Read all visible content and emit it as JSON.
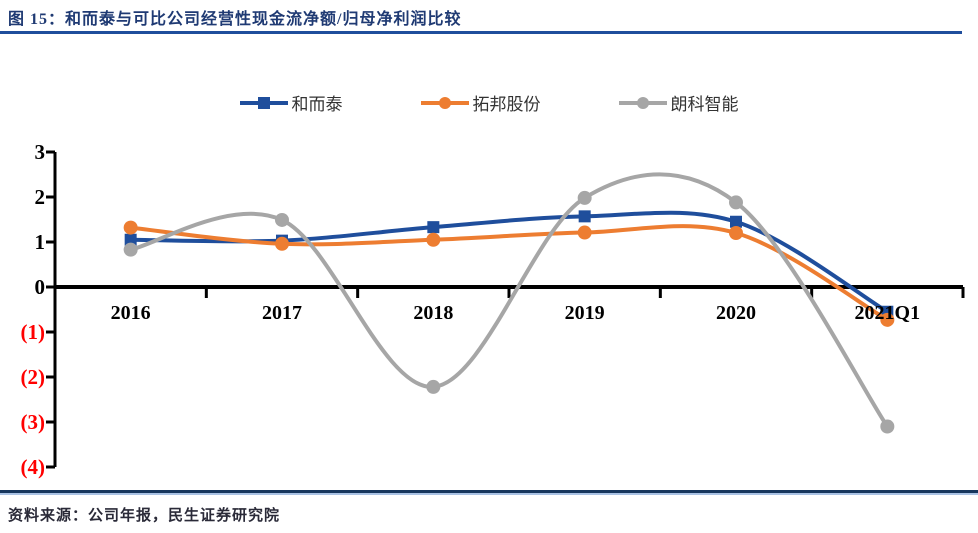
{
  "figure": {
    "label": "图 15：",
    "title": "图 15：和而泰与可比公司经营性现金流净额/归母净利润比较",
    "source": "资料来源：公司年报，民生证券研究院"
  },
  "colors": {
    "accent_blue": "#1F4E9C",
    "axis_black": "#000000",
    "negative_red": "#FF0000",
    "tick_label_black": "#000000"
  },
  "chart_data": {
    "type": "line",
    "title": "和而泰与可比公司经营性现金流净额/归母净利润比较",
    "xlabel": "",
    "ylabel": "",
    "categories": [
      "2016",
      "2017",
      "2018",
      "2019",
      "2020",
      "2021Q1"
    ],
    "series": [
      {
        "name": "和而泰",
        "color": "#1F4E9C",
        "marker": "square",
        "values": [
          1.05,
          1.03,
          1.33,
          1.57,
          1.45,
          -0.55
        ]
      },
      {
        "name": "拓邦股份",
        "color": "#ED7D31",
        "marker": "circle",
        "values": [
          1.32,
          0.96,
          1.05,
          1.21,
          1.2,
          -0.73
        ]
      },
      {
        "name": "朗科智能",
        "color": "#A6A6A6",
        "marker": "circle",
        "values": [
          0.83,
          1.49,
          -2.22,
          1.98,
          1.88,
          -3.1
        ]
      }
    ],
    "ylim": [
      -4,
      3
    ],
    "yticks": [
      3,
      2,
      1,
      0,
      -1,
      -2,
      -3,
      -4
    ],
    "ytick_labels": [
      "3",
      "2",
      "1",
      "0",
      "(1)",
      "(2)",
      "(3)",
      "(4)"
    ],
    "grid": false,
    "smooth": true,
    "legend_position": "top"
  }
}
